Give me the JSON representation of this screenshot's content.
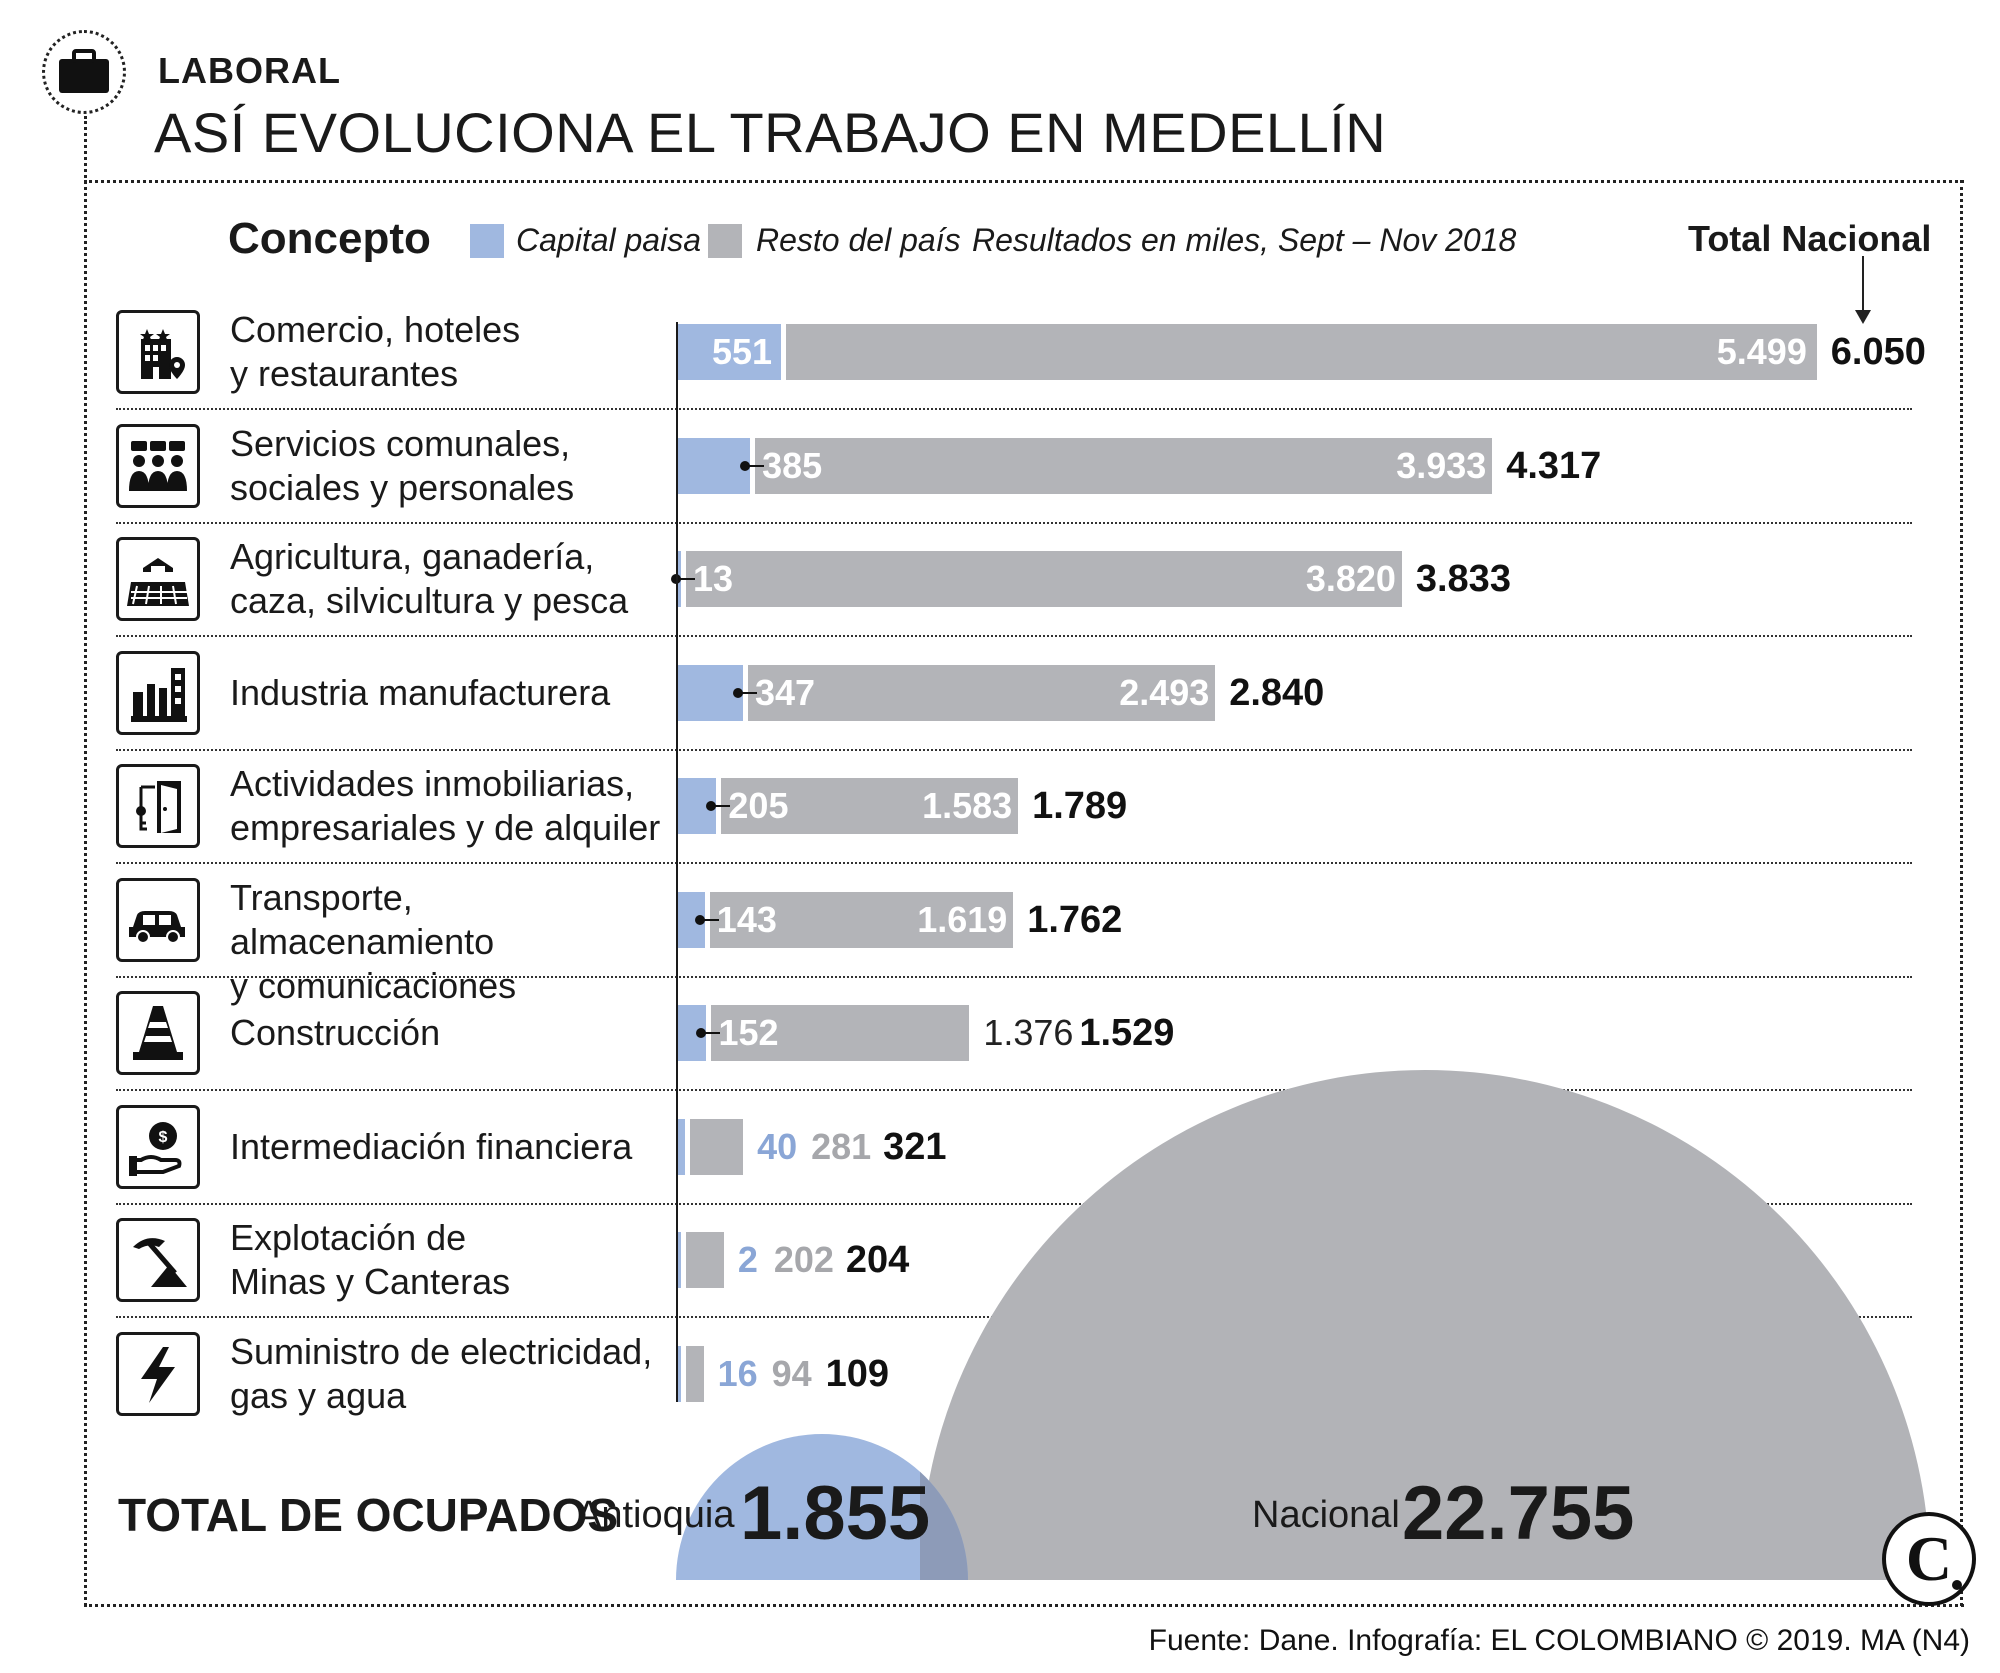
{
  "header": {
    "section": "LABORAL",
    "title": "ASÍ EVOLUCIONA  EL TRABAJO EN MEDELLÍN"
  },
  "legend": {
    "concepto": "Concepto",
    "capital": "Capital paisa",
    "resto": "Resto del país",
    "note": "Resultados en miles, Sept – Nov 2018",
    "total_header": "Total Nacional",
    "colors": {
      "capital": "#a0b8e0",
      "resto": "#b3b4b8"
    }
  },
  "totals": {
    "label": "TOTAL DE OCUPADOS",
    "antioquia_label": "Antioquia",
    "antioquia_value": "1.855",
    "nacional_label": "Nacional",
    "nacional_value": "22.755"
  },
  "source": "Fuente: Dane. Infografía: EL COLOMBIANO © 2019. MA (N4)",
  "logo_text": "C",
  "chart_data": {
    "type": "bar",
    "orientation": "horizontal",
    "stacked": true,
    "units": "miles",
    "categories": [
      {
        "label": [
          "Comercio, hoteles",
          "y restaurantes"
        ],
        "icon": "hotel-icon",
        "capital": 551,
        "resto": 5499,
        "total": 6050,
        "capital_text": "551",
        "resto_text": "5.499",
        "total_text": "6.050"
      },
      {
        "label": [
          "Servicios comunales,",
          "sociales y personales"
        ],
        "icon": "community-icon",
        "capital": 385,
        "resto": 3933,
        "total": 4317,
        "capital_text": "385",
        "resto_text": "3.933",
        "total_text": "4.317"
      },
      {
        "label": [
          "Agricultura, ganadería,",
          "caza, silvicultura y pesca"
        ],
        "icon": "farm-icon",
        "capital": 13,
        "resto": 3820,
        "total": 3833,
        "capital_text": "13",
        "resto_text": "3.820",
        "total_text": "3.833"
      },
      {
        "label": [
          "Industria manufacturera"
        ],
        "icon": "factory-icon",
        "capital": 347,
        "resto": 2493,
        "total": 2840,
        "capital_text": "347",
        "resto_text": "2.493",
        "total_text": "2.840"
      },
      {
        "label": [
          "Actividades inmobiliarias,",
          "empresariales y de alquiler"
        ],
        "icon": "door-key-icon",
        "capital": 205,
        "resto": 1583,
        "total": 1789,
        "capital_text": "205",
        "resto_text": "1.583",
        "total_text": "1.789"
      },
      {
        "label": [
          "Transporte, almacenamiento",
          "y comunicaciones"
        ],
        "icon": "car-icon",
        "capital": 143,
        "resto": 1619,
        "total": 1762,
        "capital_text": "143",
        "resto_text": "1.619",
        "total_text": "1.762"
      },
      {
        "label": [
          "Construcción"
        ],
        "icon": "traffic-cone-icon",
        "capital": 152,
        "resto": 1376,
        "total": 1529,
        "capital_text": "152",
        "resto_text": "1.376",
        "total_text": "1.529"
      },
      {
        "label": [
          "Intermediación financiera"
        ],
        "icon": "money-hand-icon",
        "capital": 40,
        "resto": 281,
        "total": 321,
        "capital_text": "40",
        "resto_text": "281",
        "total_text": "321"
      },
      {
        "label": [
          "Explotación de",
          "Minas y Canteras"
        ],
        "icon": "pickaxe-mountain-icon",
        "capital": 2,
        "resto": 202,
        "total": 204,
        "capital_text": "2",
        "resto_text": "202",
        "total_text": "204"
      },
      {
        "label": [
          "Suministro de electricidad,",
          "gas y agua"
        ],
        "icon": "lightning-icon",
        "capital": 16,
        "resto": 94,
        "total": 109,
        "capital_text": "16",
        "resto_text": "94",
        "total_text": "109"
      }
    ],
    "total_ocupados": {
      "antioquia": 1855,
      "nacional": 22755
    }
  }
}
